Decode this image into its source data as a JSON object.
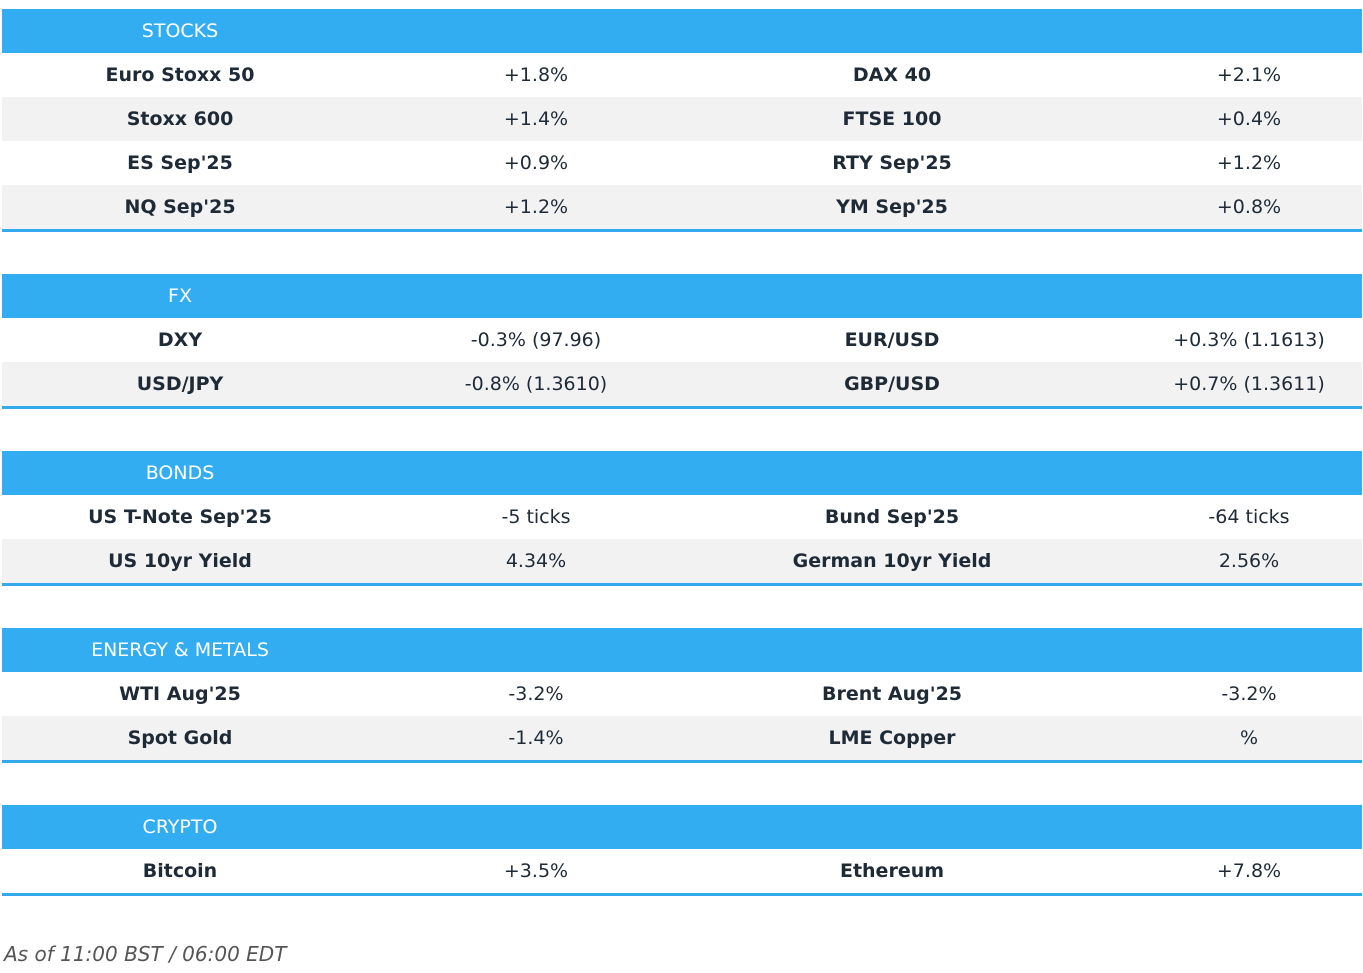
{
  "sections": [
    {
      "title": "STOCKS",
      "rows": [
        [
          "Euro Stoxx 50",
          "+1.8%",
          "DAX 40",
          "+2.1%"
        ],
        [
          "Stoxx 600",
          "+1.4%",
          "FTSE 100",
          "+0.4%"
        ],
        [
          "ES Sep'25",
          "+0.9%",
          "RTY Sep'25",
          "+1.2%"
        ],
        [
          "NQ Sep'25",
          "+1.2%",
          "YM Sep'25",
          "+0.8%"
        ]
      ]
    },
    {
      "title": "FX",
      "rows": [
        [
          "DXY",
          "-0.3% (97.96)",
          "EUR/USD",
          "+0.3% (1.1613)"
        ],
        [
          "USD/JPY",
          "-0.8% (1.3610)",
          "GBP/USD",
          "+0.7% (1.3611)"
        ]
      ]
    },
    {
      "title": "BONDS",
      "rows": [
        [
          "US T-Note Sep'25",
          "-5 ticks",
          "Bund Sep'25",
          "-64 ticks"
        ],
        [
          "US 10yr Yield",
          "4.34%",
          "German 10yr Yield",
          "2.56%"
        ]
      ]
    },
    {
      "title": "ENERGY & METALS",
      "rows": [
        [
          "WTI Aug'25",
          "-3.2%",
          "Brent Aug'25",
          "-3.2%"
        ],
        [
          "Spot Gold",
          "-1.4%",
          "LME Copper",
          "%"
        ]
      ]
    },
    {
      "title": "CRYPTO",
      "rows": [
        [
          "Bitcoin",
          "+3.5%",
          "Ethereum",
          "+7.8%"
        ]
      ]
    }
  ],
  "footer": "As of 11:00 BST / 06:00 EDT"
}
